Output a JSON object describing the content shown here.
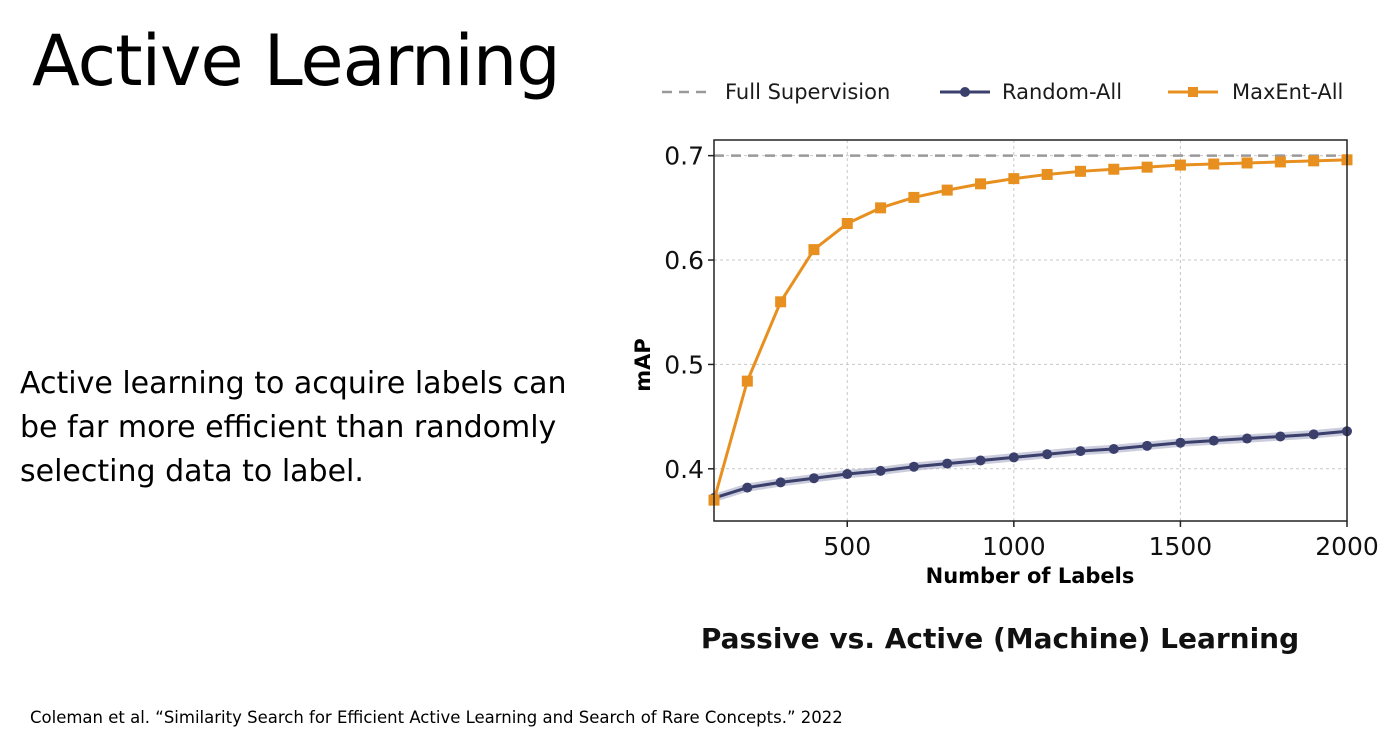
{
  "slide": {
    "title": "Active Learning",
    "body": "Active learning to acquire labels can be far more efficient than randomly selecting data to label.",
    "citation": "Coleman et al. “Similarity Search for Efficient Active Learning and Search of Rare Concepts.” 2022"
  },
  "chart_data": {
    "type": "line",
    "title": "Passive vs. Active (Machine) Learning",
    "xlabel": "Number of Labels",
    "ylabel": "mAP",
    "xlim": [
      100,
      2000
    ],
    "ylim": [
      0.35,
      0.715
    ],
    "x_ticks": [
      500,
      1000,
      1500,
      2000
    ],
    "x_tick_labels": [
      "500",
      "1000",
      "1500",
      "2000"
    ],
    "y_ticks": [
      0.4,
      0.5,
      0.6,
      0.7
    ],
    "y_tick_labels": [
      "0.4",
      "0.5",
      "0.6",
      "0.7"
    ],
    "grid": true,
    "legend": "top, horizontal, above plot",
    "reference_lines": [
      {
        "name": "Full Supervision",
        "y": 0.7,
        "color": "#999999",
        "style": "dashed"
      }
    ],
    "series": [
      {
        "name": "Random-All",
        "color": "#3b3f6b",
        "band_color": "#a9abc7",
        "marker": "circle",
        "x": [
          100,
          200,
          300,
          400,
          500,
          600,
          700,
          800,
          900,
          1000,
          1100,
          1200,
          1300,
          1400,
          1500,
          1600,
          1700,
          1800,
          1900,
          2000
        ],
        "values": [
          0.372,
          0.382,
          0.387,
          0.391,
          0.395,
          0.398,
          0.402,
          0.405,
          0.408,
          0.411,
          0.414,
          0.417,
          0.419,
          0.422,
          0.425,
          0.427,
          0.429,
          0.431,
          0.433,
          0.436
        ],
        "band_half_width": 0.004
      },
      {
        "name": "MaxEnt-All",
        "color": "#e8901f",
        "marker": "square",
        "x": [
          100,
          200,
          300,
          400,
          500,
          600,
          700,
          800,
          900,
          1000,
          1100,
          1200,
          1300,
          1400,
          1500,
          1600,
          1700,
          1800,
          1900,
          2000
        ],
        "values": [
          0.37,
          0.484,
          0.56,
          0.61,
          0.635,
          0.65,
          0.66,
          0.667,
          0.673,
          0.678,
          0.682,
          0.685,
          0.687,
          0.689,
          0.691,
          0.692,
          0.693,
          0.694,
          0.695,
          0.696
        ]
      }
    ]
  }
}
